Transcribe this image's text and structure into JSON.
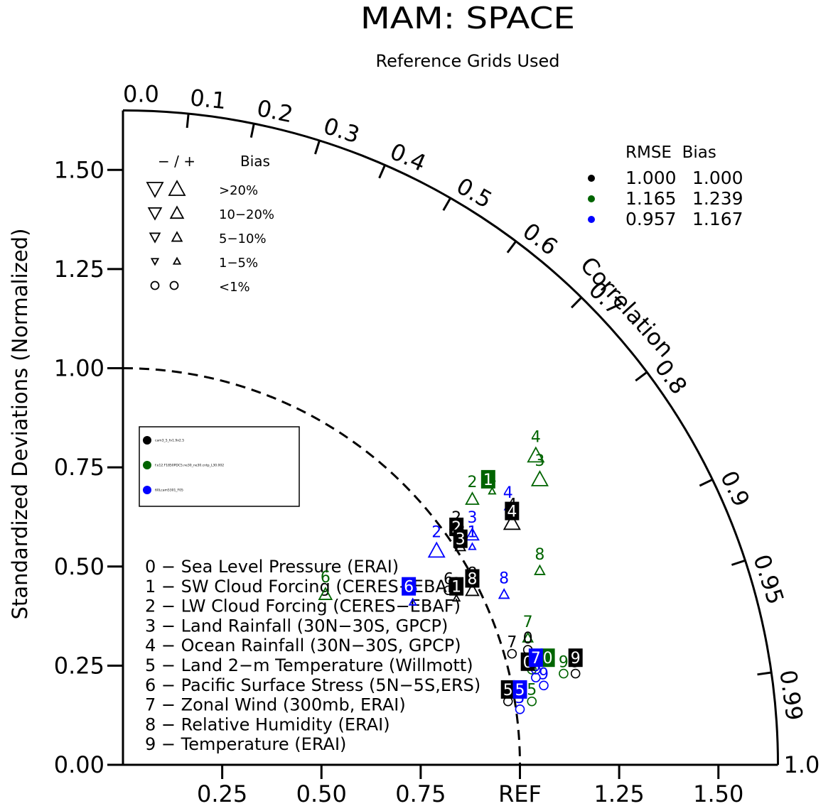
{
  "chart_data": {
    "type": "taylor-diagram",
    "title": "MAM: SPACE",
    "subtitle": "Reference Grids Used",
    "ylabel": "Standardized Deviations (Normalized)",
    "correlation_label": "Correlation",
    "stddev_max": 1.65,
    "y_ticks": [
      {
        "value": 0.0,
        "label": "0.00"
      },
      {
        "value": 0.25,
        "label": "0.25"
      },
      {
        "value": 0.5,
        "label": "0.50"
      },
      {
        "value": 0.75,
        "label": "0.75"
      },
      {
        "value": 1.0,
        "label": "1.00"
      },
      {
        "value": 1.25,
        "label": "1.25"
      },
      {
        "value": 1.5,
        "label": "1.50"
      }
    ],
    "x_ticks": [
      {
        "value": 0.25,
        "label": "0.25"
      },
      {
        "value": 0.5,
        "label": "0.50"
      },
      {
        "value": 0.75,
        "label": "0.75"
      },
      {
        "value": 1.0,
        "label": "REF"
      },
      {
        "value": 1.25,
        "label": "1.25"
      },
      {
        "value": 1.5,
        "label": "1.50"
      }
    ],
    "corr_ticks": [
      {
        "value": 0.0,
        "label": "0.0"
      },
      {
        "value": 0.1,
        "label": "0.1"
      },
      {
        "value": 0.2,
        "label": "0.2"
      },
      {
        "value": 0.3,
        "label": "0.3"
      },
      {
        "value": 0.4,
        "label": "0.4"
      },
      {
        "value": 0.5,
        "label": "0.5"
      },
      {
        "value": 0.6,
        "label": "0.6"
      },
      {
        "value": 0.7,
        "label": "0.7"
      },
      {
        "value": 0.8,
        "label": "0.8"
      },
      {
        "value": 0.9,
        "label": "0.9"
      },
      {
        "value": 0.95,
        "label": "0.95"
      },
      {
        "value": 0.99,
        "label": "0.99"
      },
      {
        "value": 1.0,
        "label": "1.0"
      }
    ],
    "bias_legend": {
      "header_symbols": "−  /  +",
      "header_label": "Bias",
      "rows": [
        {
          "label": ">20%",
          "size": 1.0
        },
        {
          "label": "10−20%",
          "size": 0.8
        },
        {
          "label": "5−10%",
          "size": 0.62
        },
        {
          "label": "1−5%",
          "size": 0.42
        },
        {
          "label": "<1%",
          "size": 0
        }
      ]
    },
    "rmse_bias_table": {
      "header": "RMSE  Bias",
      "rows": [
        {
          "color": "#000000",
          "rmse": "1.000",
          "bias": "1.000"
        },
        {
          "color": "#006400",
          "rmse": "1.165",
          "bias": "1.239"
        },
        {
          "color": "#0000ff",
          "rmse": "0.957",
          "bias": "1.167"
        }
      ]
    },
    "case_legend": [
      {
        "name": "cam3_5_fv1.9x2.5",
        "color": "#000000"
      },
      {
        "name": "f.e12.F1850PDC5.ne30_ne30.cntp_L30.002",
        "color": "#006400"
      },
      {
        "name": "60Lcam5301_F05",
        "color": "#0000ff"
      }
    ],
    "variables": [
      "0 − Sea Level Pressure (ERAI)",
      "1 − SW Cloud Forcing (CERES−EBAF)",
      "2 − LW Cloud Forcing (CERES−EBAF)",
      "3 − Land Rainfall (30N−30S, GPCP)",
      "4 − Ocean Rainfall (30N−30S, GPCP)",
      "5 − Land 2−m Temperature (Willmott)",
      "6 − Pacific Surface Stress (5N−5S,ERS)",
      "7 − Zonal Wind (300mb, ERAI)",
      "8 − Relative Humidity (ERAI)",
      "9 − Temperature (ERAI)"
    ],
    "series": [
      {
        "name": "cam3_5_fv1.9x2.5",
        "color": "#000000",
        "points": [
          {
            "id": "0",
            "x": 1.02,
            "y": 0.29,
            "bias": "<1%",
            "dir": "o"
          },
          {
            "id": "1",
            "x": 0.84,
            "y": 0.42,
            "bias": "1-5%",
            "dir": "+"
          },
          {
            "id": "2",
            "x": 0.84,
            "y": 0.58,
            "bias": "10-20%",
            "dir": "-"
          },
          {
            "id": "3",
            "x": 0.85,
            "y": 0.55,
            "bias": "5-10%",
            "dir": "+"
          },
          {
            "id": "4",
            "x": 0.98,
            "y": 0.61,
            "bias": ">20%",
            "dir": "+"
          },
          {
            "id": "5",
            "x": 0.97,
            "y": 0.16,
            "bias": "<1%",
            "dir": "o"
          },
          {
            "id": "6",
            "x": 0.82,
            "y": 0.44,
            "bias": "<1%",
            "dir": "o"
          },
          {
            "id": "7",
            "x": 0.98,
            "y": 0.28,
            "bias": "<1%",
            "dir": "o"
          },
          {
            "id": "8",
            "x": 0.88,
            "y": 0.44,
            "bias": "10-20%",
            "dir": "+"
          },
          {
            "id": "9",
            "x": 1.14,
            "y": 0.23,
            "bias": "<1%",
            "dir": "o"
          }
        ]
      },
      {
        "name": "f.e12.F1850PDC5.ne30_ne30.cntp_L30.002",
        "color": "#006400",
        "points": [
          {
            "id": "0",
            "x": 1.03,
            "y": 0.24,
            "bias": "<1%",
            "dir": "o"
          },
          {
            "id": "1",
            "x": 0.93,
            "y": 0.69,
            "bias": "1-5%",
            "dir": "+"
          },
          {
            "id": "2",
            "x": 0.88,
            "y": 0.67,
            "bias": "10-20%",
            "dir": "+"
          },
          {
            "id": "3",
            "x": 1.05,
            "y": 0.72,
            "bias": ">20%",
            "dir": "+"
          },
          {
            "id": "4",
            "x": 1.04,
            "y": 0.78,
            "bias": ">20%",
            "dir": "+"
          },
          {
            "id": "5",
            "x": 1.03,
            "y": 0.16,
            "bias": "<1%",
            "dir": "o"
          },
          {
            "id": "6",
            "x": 0.51,
            "y": 0.43,
            "bias": "10-20%",
            "dir": "+"
          },
          {
            "id": "7",
            "x": 1.02,
            "y": 0.32,
            "bias": "5-10%",
            "dir": "+"
          },
          {
            "id": "8",
            "x": 1.05,
            "y": 0.49,
            "bias": "5-10%",
            "dir": "+"
          },
          {
            "id": "9",
            "x": 1.11,
            "y": 0.23,
            "bias": "<1%",
            "dir": "o"
          }
        ]
      },
      {
        "name": "60Lcam5301_F05",
        "color": "#0000ff",
        "points": [
          {
            "id": "0",
            "x": 1.04,
            "y": 0.22,
            "bias": "<1%",
            "dir": "o"
          },
          {
            "id": "1",
            "x": 0.88,
            "y": 0.55,
            "bias": "1-5%",
            "dir": "+"
          },
          {
            "id": "2",
            "x": 0.79,
            "y": 0.54,
            "bias": ">20%",
            "dir": "+"
          },
          {
            "id": "3",
            "x": 0.88,
            "y": 0.58,
            "bias": "10-20%",
            "dir": "+"
          },
          {
            "id": "4",
            "x": 0.97,
            "y": 0.65,
            "bias": "1-5%",
            "dir": "+"
          },
          {
            "id": "5",
            "x": 1.0,
            "y": 0.14,
            "bias": "<1%",
            "dir": "o"
          },
          {
            "id": "6",
            "x": 0.73,
            "y": 0.41,
            "bias": "1-5%",
            "dir": "+"
          },
          {
            "id": "7",
            "x": 1.04,
            "y": 0.24,
            "bias": "<1%",
            "dir": "o"
          },
          {
            "id": "8",
            "x": 0.96,
            "y": 0.43,
            "bias": "5-10%",
            "dir": "+"
          },
          {
            "id": "9",
            "x": 1.06,
            "y": 0.2,
            "bias": "<1%",
            "dir": "o"
          }
        ]
      }
    ],
    "case_means": [
      {
        "series": 0,
        "id": "0",
        "x": 1.02,
        "y": 0.26
      },
      {
        "series": 0,
        "id": "1",
        "x": 0.84,
        "y": 0.45
      },
      {
        "series": 0,
        "id": "2",
        "x": 0.84,
        "y": 0.6
      },
      {
        "series": 0,
        "id": "3",
        "x": 0.85,
        "y": 0.57
      },
      {
        "series": 0,
        "id": "4",
        "x": 0.98,
        "y": 0.64
      },
      {
        "series": 0,
        "id": "5",
        "x": 0.97,
        "y": 0.19
      },
      {
        "series": 0,
        "id": "8",
        "x": 0.88,
        "y": 0.47
      },
      {
        "series": 0,
        "id": "9",
        "x": 1.14,
        "y": 0.27
      },
      {
        "series": 1,
        "id": "0",
        "x": 1.07,
        "y": 0.27
      },
      {
        "series": 1,
        "id": "1",
        "x": 0.92,
        "y": 0.72
      },
      {
        "series": 2,
        "id": "5",
        "x": 1.0,
        "y": 0.19
      },
      {
        "series": 2,
        "id": "6",
        "x": 0.72,
        "y": 0.45
      },
      {
        "series": 2,
        "id": "7",
        "x": 1.04,
        "y": 0.27
      }
    ]
  }
}
